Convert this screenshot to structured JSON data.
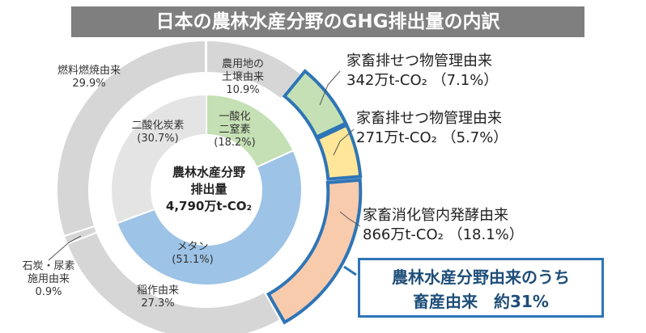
{
  "chart_data": {
    "type": "donut",
    "title": "日本の農林水産分野のGHG排出量の内訳",
    "center_label": "農林水産分野\n排出量\n4,790万t-CO₂",
    "inner": {
      "categories": [
        "一酸化\n二窒素",
        "メタン",
        "二酸化炭素"
      ],
      "values": [
        18.2,
        51.1,
        30.7
      ],
      "value_labels": [
        "(18.2%)",
        "(51.1%)",
        "(30.7%)"
      ],
      "colors": [
        "#c5e0b4",
        "#9dc3e6",
        "#e4e4e4"
      ]
    },
    "outer": {
      "categories": [
        "農用地の\n土壌由来",
        "家畜排せつ物管理由来",
        "家畜排せつ物管理由来",
        "家畜消化管内発酵由来",
        "稲作由来",
        "石炭・尿素\n施用由来",
        "燃料燃焼由来"
      ],
      "values": [
        10.9,
        7.1,
        5.7,
        18.1,
        27.3,
        0.9,
        29.9
      ],
      "value_labels": [
        "10.9%",
        "342万t-CO₂ （7.1%）",
        "271万t-CO₂ （5.7%）",
        "866万t-CO₂ （18.1%）",
        "27.3%",
        "0.9%",
        "29.9%"
      ],
      "colors": [
        "#d6d6d6",
        "#c5e0b4",
        "#ffe699",
        "#f8cbad",
        "#d6d6d6",
        "#d6d6d6",
        "#d6d6d6"
      ],
      "edge_colors": [
        null,
        "#2e75b6",
        "#2e75b6",
        "#2e75b6",
        null,
        null,
        null
      ]
    },
    "callout": "農林水産分野由来のうち\n畜産由来　約31%"
  }
}
